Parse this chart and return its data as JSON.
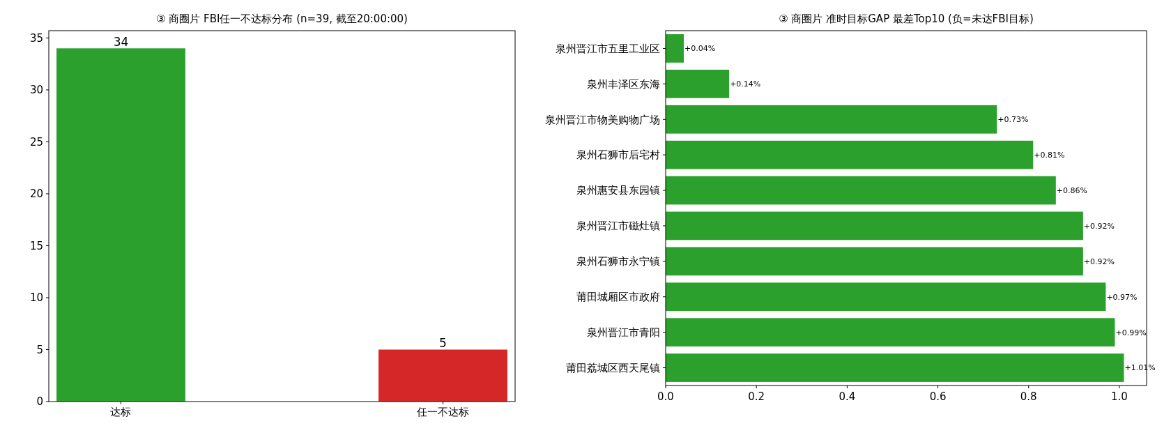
{
  "chart_data": [
    {
      "type": "bar",
      "title": "③ 商圈片 FBI任一不达标分布 (n=39, 截至20:00:00)",
      "categories": [
        "达标",
        "任一不达标"
      ],
      "values": [
        34,
        5
      ],
      "colors": [
        "#2ca02c",
        "#d62728"
      ],
      "ylim": [
        0,
        35.7
      ],
      "yticks": [
        0,
        5,
        10,
        15,
        20,
        25,
        30,
        35
      ],
      "data_labels": true,
      "grid": false
    },
    {
      "type": "bar",
      "orientation": "horizontal",
      "title": "③ 商圈片 准时目标GAP 最差Top10 (负=未达FBI目标)",
      "categories": [
        "泉州晋江市五里工业区",
        "泉州丰泽区东海",
        "泉州晋江市物美购物广场",
        "泉州石狮市后宅村",
        "泉州惠安县东园镇",
        "泉州晋江市磁灶镇",
        "泉州石狮市永宁镇",
        "莆田城厢区市政府",
        "泉州晋江市青阳",
        "莆田荔城区西天尾镇"
      ],
      "values": [
        0.04,
        0.14,
        0.73,
        0.81,
        0.86,
        0.92,
        0.92,
        0.97,
        0.99,
        1.01
      ],
      "value_labels": [
        "+0.04%",
        "+0.14%",
        "+0.73%",
        "+0.81%",
        "+0.86%",
        "+0.92%",
        "+0.92%",
        "+0.97%",
        "+0.99%",
        "+1.01%"
      ],
      "color": "#2ca02c",
      "xlim": [
        0,
        1.06
      ],
      "xticks": [
        {
          "value": 0,
          "label": "0.0"
        },
        {
          "value": 0.2,
          "label": "0.2"
        },
        {
          "value": 0.4,
          "label": "0.4"
        },
        {
          "value": 0.6,
          "label": "0.6"
        },
        {
          "value": 0.8,
          "label": "0.8"
        },
        {
          "value": 1,
          "label": "1.0"
        }
      ],
      "grid": false
    }
  ]
}
